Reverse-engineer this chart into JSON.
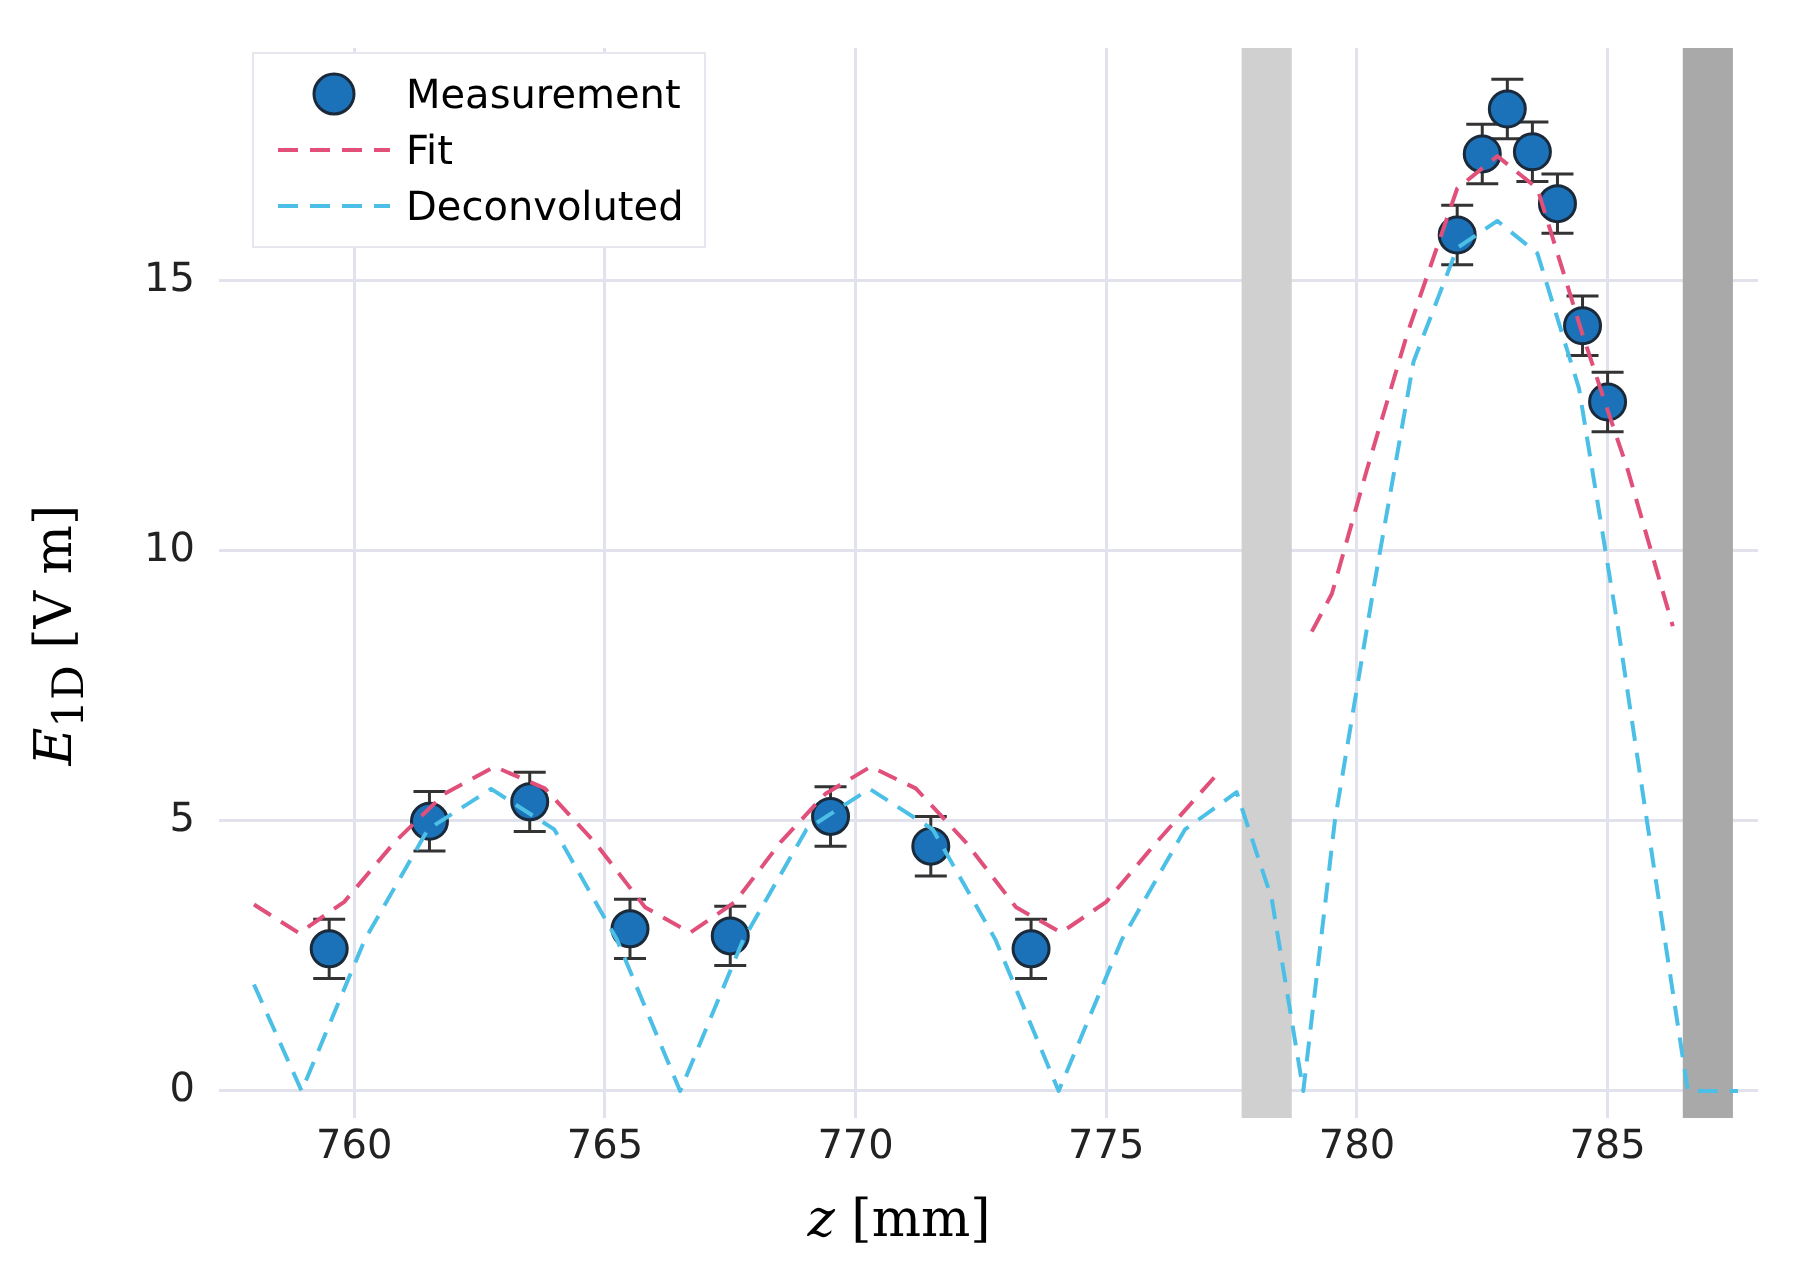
{
  "chart_data": {
    "type": "scatter",
    "xlabel": "z [mm]",
    "ylabel": "E$_{1D}$ [V m]",
    "xlim": [
      757.3,
      788.0
    ],
    "xticks": [
      760,
      765,
      770,
      775,
      780,
      785
    ],
    "ylim": [
      -0.5,
      19.3
    ],
    "yticks": [
      0,
      5,
      10,
      15
    ],
    "grid": true,
    "legend": "top left",
    "bands": [
      {
        "axis": "x",
        "from": 777.7,
        "to": 778.7,
        "color": "#d0d0d0"
      },
      {
        "axis": "x",
        "from": 786.5,
        "to": 787.5,
        "color": "#a9a9a9"
      }
    ],
    "series": [
      {
        "name": "Measurement",
        "marker": "circle",
        "color": "#1b72b8",
        "x": [
          759.5,
          761.5,
          763.5,
          765.5,
          767.5,
          769.5,
          771.5,
          773.5,
          782,
          782.5,
          783,
          783.5,
          784,
          784.5,
          785
        ],
        "values": [
          2.63,
          4.99,
          5.35,
          3.0,
          2.87,
          5.08,
          4.53,
          2.63,
          15.84,
          17.34,
          18.17,
          17.38,
          16.42,
          14.16,
          12.75
        ],
        "errors": [
          0.55,
          0.55,
          0.55,
          0.55,
          0.55,
          0.55,
          0.55,
          0.55,
          0.55,
          0.55,
          0.55,
          0.55,
          0.55,
          0.55,
          0.55
        ]
      },
      {
        "name": "Fit",
        "type": "line",
        "line_style": "dashed",
        "marker": "none",
        "color": "#e0507a",
        "x": [
          758.0,
          758.9,
          759.8,
          760.8,
          761.8,
          762.8,
          763.8,
          764.8,
          765.8,
          766.7,
          767.6,
          768.5,
          769.4,
          770.3,
          771.2,
          772.2,
          773.2,
          774.1,
          775.0,
          776.0,
          777.2,
          778.2,
          779.1,
          779.5,
          780.2,
          781.0,
          782.0,
          782.8,
          783.6,
          784.5,
          785.0,
          785.4,
          786.3
        ],
        "values": [
          3.45,
          2.92,
          3.5,
          4.6,
          5.5,
          6.0,
          5.6,
          4.6,
          3.4,
          2.93,
          3.5,
          4.6,
          5.5,
          6.0,
          5.6,
          4.6,
          3.4,
          2.93,
          3.5,
          4.6,
          5.85,
          null,
          8.5,
          9.2,
          11.5,
          14.0,
          16.7,
          17.3,
          16.7,
          14.0,
          12.6,
          11.5,
          8.6
        ]
      },
      {
        "name": "Deconvoluted",
        "type": "line",
        "line_style": "dashed",
        "marker": "none",
        "color": "#4cbfe6",
        "x": [
          758.0,
          758.95,
          760.21,
          761.47,
          762.73,
          763.99,
          765.24,
          766.5,
          767.76,
          769.02,
          770.28,
          771.54,
          772.79,
          774.05,
          775.31,
          776.57,
          777.6,
          778.3,
          778.93,
          779.56,
          780.35,
          781.13,
          782.0,
          782.8,
          783.6,
          784.43,
          785.22,
          785.93,
          786.6,
          787.6
        ],
        "values": [
          1.97,
          0,
          2.8,
          4.84,
          5.59,
          4.84,
          2.8,
          0,
          2.8,
          4.84,
          5.59,
          4.84,
          2.8,
          0,
          2.8,
          4.84,
          5.53,
          3.56,
          0,
          5.0,
          9.4,
          13.5,
          15.6,
          16.1,
          15.5,
          13.0,
          8.5,
          4.1,
          0,
          0
        ]
      }
    ]
  }
}
